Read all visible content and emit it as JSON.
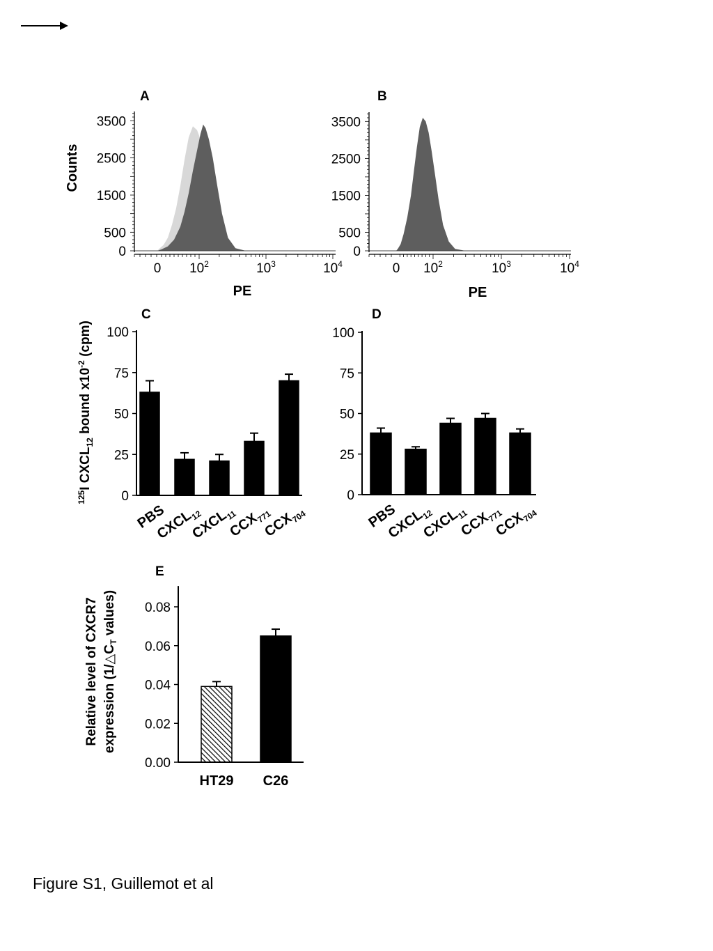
{
  "caption": "Figure S1, Guillemot et al",
  "chart_data": [
    {
      "panel": "A",
      "type": "area",
      "ylabel": "Counts",
      "xlabel": "PE",
      "y_ticks": [
        "3500",
        "2500",
        "1500",
        "500",
        "0"
      ],
      "x_ticks": [
        {
          "base": "0",
          "exp": ""
        },
        {
          "base": "10",
          "exp": "2"
        },
        {
          "base": "10",
          "exp": "3"
        },
        {
          "base": "10",
          "exp": "4"
        }
      ],
      "log_scale_x": true,
      "series": [
        {
          "color": "#d8d8d8",
          "x": [
            0,
            5,
            15,
            25,
            35,
            45,
            55,
            65,
            75,
            85,
            95,
            105,
            115,
            130,
            150,
            175,
            210,
            260,
            400
          ],
          "values": [
            0,
            60,
            160,
            350,
            700,
            1150,
            1750,
            2450,
            3050,
            3350,
            3250,
            3000,
            2700,
            2200,
            1500,
            800,
            300,
            60,
            0
          ]
        },
        {
          "color": "#5e5e5e",
          "x": [
            0,
            10,
            25,
            40,
            55,
            65,
            75,
            85,
            95,
            105,
            115,
            125,
            140,
            160,
            185,
            220,
            270,
            350,
            500
          ],
          "values": [
            0,
            40,
            120,
            300,
            650,
            1050,
            1550,
            2150,
            2700,
            3150,
            3400,
            3300,
            3000,
            2500,
            1800,
            1000,
            350,
            70,
            0
          ]
        }
      ],
      "ylim": [
        0,
        3600
      ]
    },
    {
      "panel": "B",
      "type": "area",
      "xlabel": "PE",
      "y_ticks": [
        "3500",
        "2500",
        "1500",
        "500",
        "0"
      ],
      "x_ticks": [
        {
          "base": "0",
          "exp": ""
        },
        {
          "base": "10",
          "exp": "2"
        },
        {
          "base": "10",
          "exp": "3"
        },
        {
          "base": "10",
          "exp": "4"
        }
      ],
      "log_scale_x": true,
      "series": [
        {
          "color": "#5e5e5e",
          "x": [
            0,
            5,
            12,
            20,
            30,
            40,
            48,
            56,
            64,
            72,
            80,
            88,
            96,
            106,
            120,
            140,
            170,
            210,
            300
          ],
          "values": [
            0,
            60,
            180,
            450,
            900,
            1500,
            2150,
            2800,
            3350,
            3600,
            3500,
            3200,
            2700,
            2100,
            1400,
            700,
            250,
            50,
            0
          ]
        }
      ],
      "ylim": [
        0,
        3600
      ]
    },
    {
      "panel": "C",
      "type": "bar",
      "ylabel": "125I CXCL12 bound x10-2 (cpm)",
      "categories": [
        {
          "main": "PBS",
          "sub": ""
        },
        {
          "main": "CXCL",
          "sub": "12"
        },
        {
          "main": "CXCL",
          "sub": "11"
        },
        {
          "main": "CCX",
          "sub": "771"
        },
        {
          "main": "CCX",
          "sub": "704"
        }
      ],
      "values": [
        63,
        22,
        21,
        33,
        70
      ],
      "errors": [
        7,
        4,
        4,
        5,
        4
      ],
      "y_ticks": [
        "100",
        "75",
        "50",
        "25",
        "0"
      ],
      "ylim": [
        0,
        100
      ]
    },
    {
      "panel": "D",
      "type": "bar",
      "categories": [
        {
          "main": "PBS",
          "sub": ""
        },
        {
          "main": "CXCL",
          "sub": "12"
        },
        {
          "main": "CXCL",
          "sub": "11"
        },
        {
          "main": "CCX",
          "sub": "771"
        },
        {
          "main": "CCX",
          "sub": "704"
        }
      ],
      "values": [
        38,
        28,
        44,
        47,
        38
      ],
      "errors": [
        3,
        1.5,
        3,
        3,
        2.5
      ],
      "y_ticks": [
        "100",
        "75",
        "50",
        "25",
        "0"
      ],
      "ylim": [
        0,
        100
      ]
    },
    {
      "panel": "E",
      "type": "bar",
      "ylabel_line1": "Relative level of CXCR7",
      "ylabel_line2_pre": "expression (1/",
      "ylabel_line2_sym": "△",
      "ylabel_line2_c": "C",
      "ylabel_line2_sub": "T",
      "ylabel_line2_post": " values)",
      "categories": [
        "HT29",
        "C26"
      ],
      "values": [
        0.039,
        0.065
      ],
      "errors": [
        0.0025,
        0.0035
      ],
      "fills": [
        "hatched",
        "solid"
      ],
      "y_ticks": [
        "0.08",
        "0.06",
        "0.04",
        "0.02",
        "0.00"
      ],
      "ylim": [
        0,
        0.09
      ]
    }
  ]
}
